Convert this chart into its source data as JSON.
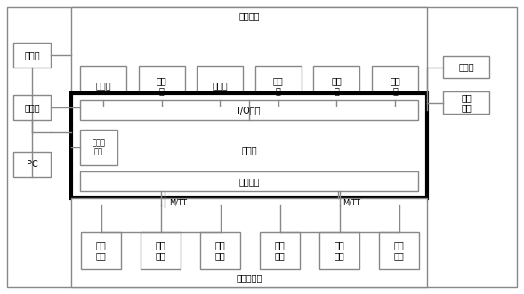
{
  "title_top": "冲压设备",
  "title_bottom": "机械手设备",
  "top_boxes": [
    "上料机",
    "冲床\n一",
    "翻转台",
    "冲床\n二",
    "冲床\n三",
    "冲床\n四"
  ],
  "bottom_boxes": [
    "机械\n手一",
    "机械\n手二",
    "机械\n手三",
    "机械\n手四",
    "机械\n手五",
    "机械\n手六"
  ],
  "left_boxes": [
    "触摸屏",
    "交换机",
    "PC"
  ],
  "right_boxes": [
    "指示灯",
    "操控\n按钮"
  ],
  "io_label": "I/O接口",
  "controller_label": "控制器",
  "servo_label": "伺服模块",
  "ethernet_label": "以太网\n接口",
  "mtt_label": "M/TT",
  "bg_color": "#ffffff",
  "box_color": "#ffffff",
  "box_edge": "#888888",
  "thick_box_edge": "#000000",
  "font_size": 7,
  "font_family": "SimHei"
}
